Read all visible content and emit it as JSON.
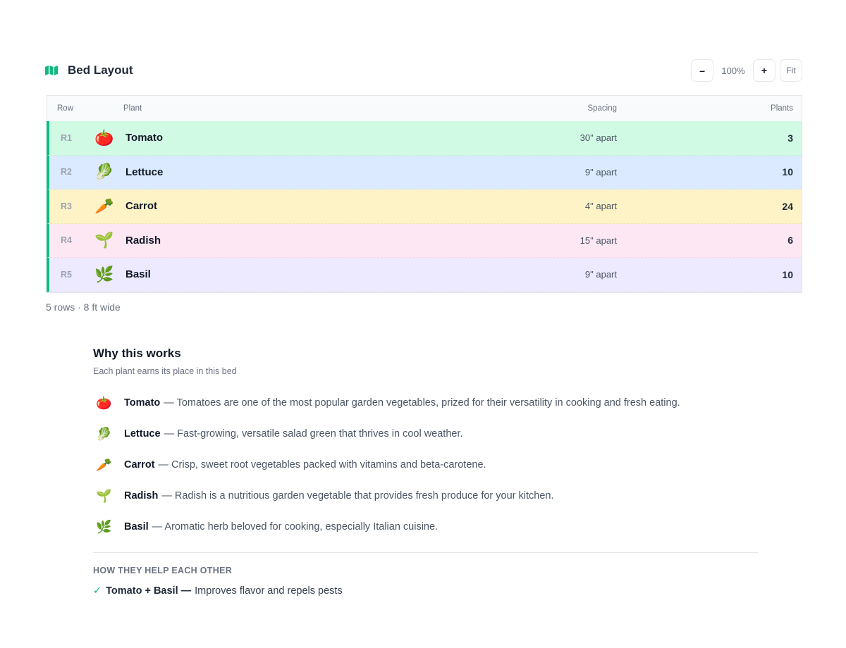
{
  "header": {
    "title": "Bed Layout",
    "zoom_out": "–",
    "zoom_level": "100%",
    "zoom_in": "+",
    "fit": "Fit"
  },
  "table": {
    "columns": [
      "Row",
      "Plant",
      "Spacing",
      "Plants"
    ],
    "rows": [
      {
        "row": "R1",
        "icon": "🍅",
        "plant": "Tomato",
        "spacing": "30\" apart",
        "plants": 3
      },
      {
        "row": "R2",
        "icon": "🥬",
        "plant": "Lettuce",
        "spacing": "9\" apart",
        "plants": 10
      },
      {
        "row": "R3",
        "icon": "🥕",
        "plant": "Carrot",
        "spacing": "4\" apart",
        "plants": 24
      },
      {
        "row": "R4",
        "icon": "🌱",
        "plant": "Radish",
        "spacing": "15\" apart",
        "plants": 6
      },
      {
        "row": "R5",
        "icon": "🌿",
        "plant": "Basil",
        "spacing": "9\" apart",
        "plants": 10
      }
    ],
    "summary": "5 rows · 8 ft wide"
  },
  "why": {
    "title": "Why this works",
    "subtitle": "Each plant earns its place in this bed",
    "items": [
      {
        "icon": "🍅",
        "name": "Tomato",
        "text": "— Tomatoes are one of the most popular garden vegetables, prized for their versatility in cooking and fresh eating."
      },
      {
        "icon": "🥬",
        "name": "Lettuce",
        "text": "— Fast-growing, versatile salad green that thrives in cool weather."
      },
      {
        "icon": "🥕",
        "name": "Carrot",
        "text": "— Crisp, sweet root vegetables packed with vitamins and beta-carotene."
      },
      {
        "icon": "🌱",
        "name": "Radish",
        "text": "— Radish is a nutritious garden vegetable that provides fresh produce for your kitchen."
      },
      {
        "icon": "🌿",
        "name": "Basil",
        "text": "— Aromatic herb beloved for cooking, especially Italian cuisine."
      }
    ]
  },
  "companions": {
    "heading": "HOW THEY HELP EACH OTHER",
    "items": [
      {
        "icon": "✓",
        "pair": "Tomato + Basil —",
        "text": "Improves flavor and repels pests"
      }
    ]
  }
}
